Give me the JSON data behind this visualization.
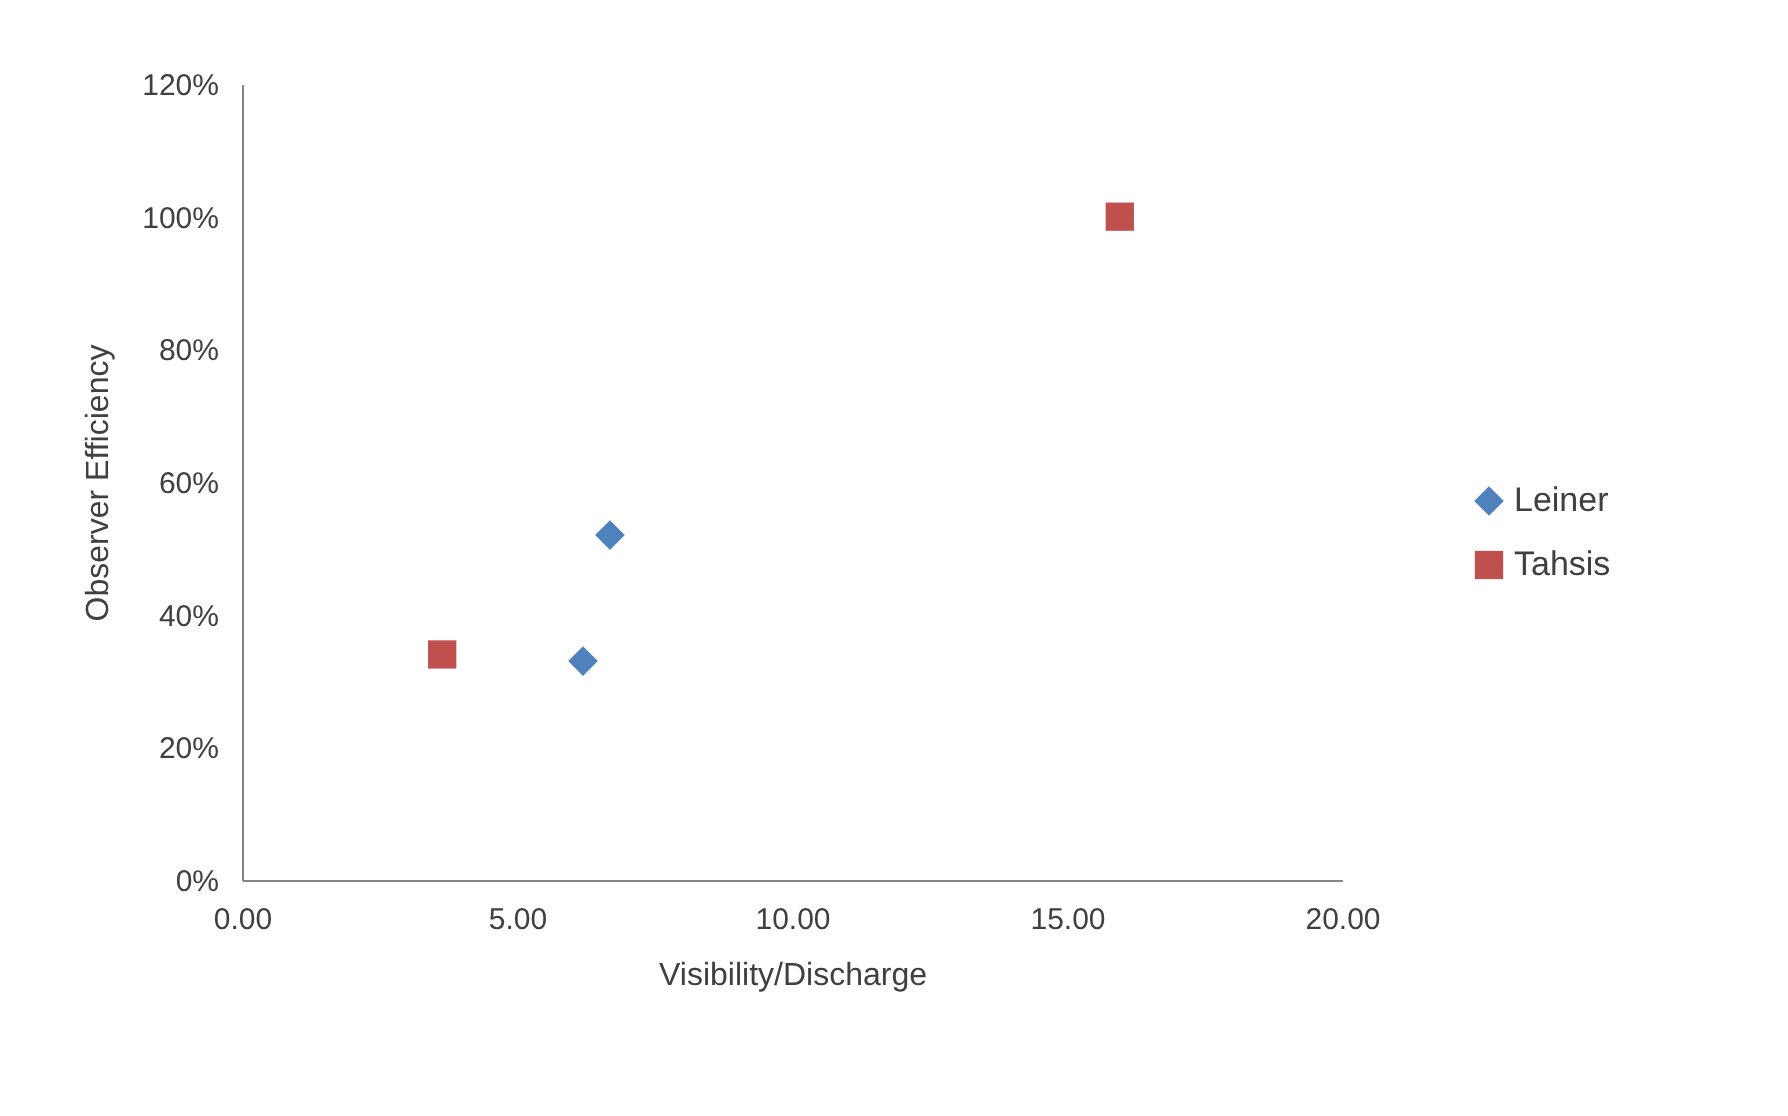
{
  "chart_data": {
    "type": "scatter",
    "xlabel": "Visibility/Discharge",
    "ylabel": "Observer Efficiency",
    "series": [
      {
        "name": "Leiner",
        "color": "#4f81bd",
        "marker": "diamond",
        "x": [
          6.69,
          6.2
        ],
        "values": [
          52,
          33
        ]
      },
      {
        "name": "Tahsis",
        "color": "#c0504d",
        "marker": "square",
        "x": [
          3.64,
          15.96
        ],
        "values": [
          34,
          100
        ]
      }
    ],
    "xlim": [
      0,
      20
    ],
    "xticks": [
      {
        "value": 0,
        "label": "0.00"
      },
      {
        "value": 5,
        "label": "5.00"
      },
      {
        "value": 10,
        "label": "10.00"
      },
      {
        "value": 15,
        "label": "15.00"
      },
      {
        "value": 20,
        "label": "20.00"
      }
    ],
    "ylim": [
      0,
      120
    ],
    "yticks": [
      {
        "value": 0,
        "label": "0%"
      },
      {
        "value": 20,
        "label": "20%"
      },
      {
        "value": 40,
        "label": "40%"
      },
      {
        "value": 60,
        "label": "60%"
      },
      {
        "value": 80,
        "label": "80%"
      },
      {
        "value": 100,
        "label": "100%"
      },
      {
        "value": 120,
        "label": "120%"
      }
    ],
    "legend": "right",
    "grid": false
  }
}
